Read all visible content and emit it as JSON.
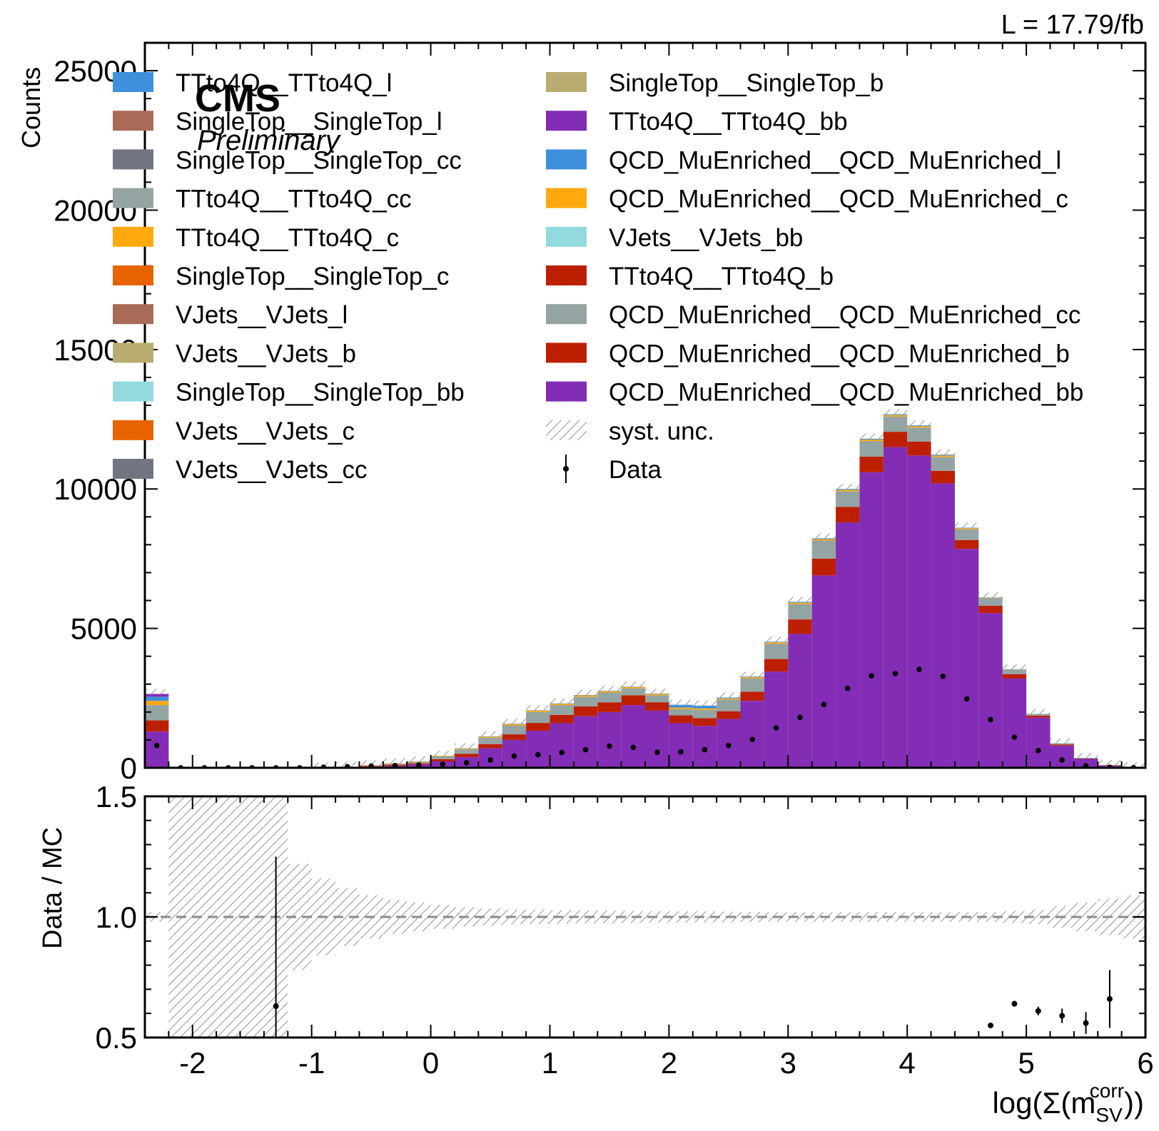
{
  "header": {
    "lumi": "L = 17.79/fb",
    "cms": "CMS",
    "preliminary": "Preliminary"
  },
  "chart_data": {
    "type": "bar",
    "subtype": "stacked-histogram-with-ratio",
    "xlabel": "log(Σ(m_SV^corr))",
    "xlabel_main": "log(Σ(m",
    "xlabel_sub": "SV",
    "xlabel_sup": "corr",
    "xlabel_end": "))",
    "ylabel": "Counts",
    "ratio_ylabel": "Data / MC",
    "xlim": [
      -2.4,
      6.0
    ],
    "ylim": [
      0,
      26000
    ],
    "ratio_ylim": [
      0.5,
      1.5
    ],
    "bin_width": 0.2,
    "x_ticks": [
      "-2",
      "-1",
      "0",
      "1",
      "2",
      "3",
      "4",
      "5",
      "6"
    ],
    "y_ticks": [
      "0",
      "5000",
      "10000",
      "15000",
      "20000",
      "25000"
    ],
    "ratio_y_ticks": [
      "0.5",
      "1.0",
      "1.5"
    ],
    "legend_placement": "top (two columns)",
    "colors": {
      "TTto4Q__TTto4Q_l": "#3f90da",
      "SingleTop__SingleTop_l": "#a96b59",
      "SingleTop__SingleTop_cc": "#717581",
      "TTto4Q__TTto4Q_cc": "#94a4a2",
      "TTto4Q__TTto4Q_c": "#ffa90e",
      "SingleTop__SingleTop_c": "#e76300",
      "VJets__VJets_l": "#a96b59",
      "VJets__VJets_b": "#b9ac70",
      "SingleTop__SingleTop_bb": "#92dadd",
      "VJets__VJets_c": "#e76300",
      "VJets__VJets_cc": "#717581",
      "SingleTop__SingleTop_b": "#b9ac70",
      "TTto4Q__TTto4Q_bb": "#832db6",
      "QCD_MuEnriched__QCD_MuEnriched_l": "#3f90da",
      "QCD_MuEnriched__QCD_MuEnriched_c": "#ffa90e",
      "VJets__VJets_bb": "#92dadd",
      "TTto4Q__TTto4Q_b": "#bd1f01",
      "QCD_MuEnriched__QCD_MuEnriched_cc": "#94a4a2",
      "QCD_MuEnriched__QCD_MuEnriched_b": "#bd1f01",
      "QCD_MuEnriched__QCD_MuEnriched_bb": "#832db6"
    },
    "legend": {
      "col1": [
        "TTto4Q__TTto4Q_l",
        "SingleTop__SingleTop_l",
        "SingleTop__SingleTop_cc",
        "TTto4Q__TTto4Q_cc",
        "TTto4Q__TTto4Q_c",
        "SingleTop__SingleTop_c",
        "VJets__VJets_l",
        "VJets__VJets_b",
        "SingleTop__SingleTop_bb",
        "VJets__VJets_c",
        "VJets__VJets_cc"
      ],
      "col2": [
        "SingleTop__SingleTop_b",
        "TTto4Q__TTto4Q_bb",
        "QCD_MuEnriched__QCD_MuEnriched_l",
        "QCD_MuEnriched__QCD_MuEnriched_c",
        "VJets__VJets_bb",
        "TTto4Q__TTto4Q_b",
        "QCD_MuEnriched__QCD_MuEnriched_cc",
        "QCD_MuEnriched__QCD_MuEnriched_b",
        "QCD_MuEnriched__QCD_MuEnriched_bb"
      ],
      "syst": "syst. unc.",
      "data": "Data"
    },
    "bins_x_low": [
      -2.4,
      -2.2,
      -2.0,
      -1.8,
      -1.6,
      -1.4,
      -1.2,
      -1.0,
      -0.8,
      -0.6,
      -0.4,
      -0.2,
      0.0,
      0.2,
      0.4,
      0.6,
      0.8,
      1.0,
      1.2,
      1.4,
      1.6,
      1.8,
      2.0,
      2.2,
      2.4,
      2.6,
      2.8,
      3.0,
      3.2,
      3.4,
      3.6,
      3.8,
      4.0,
      4.2,
      4.4,
      4.6,
      4.8,
      5.0,
      5.2,
      5.4,
      5.6,
      5.8
    ],
    "stack_bottom_to_top": [
      "QCD_MuEnriched__QCD_MuEnriched_bb",
      "QCD_MuEnriched__QCD_MuEnriched_b",
      "QCD_MuEnriched__QCD_MuEnriched_cc",
      "QCD_MuEnriched__QCD_MuEnriched_c",
      "QCD_MuEnriched__QCD_MuEnriched_l",
      "TTto4Q__TTto4Q_bb"
    ],
    "series": [
      {
        "name": "QCD_MuEnriched__QCD_MuEnriched_bb",
        "values": [
          1300,
          0,
          0,
          0,
          0,
          0,
          0,
          5,
          20,
          40,
          70,
          120,
          230,
          380,
          700,
          1000,
          1330,
          1600,
          1850,
          2000,
          2250,
          2050,
          1600,
          1500,
          1750,
          2400,
          3450,
          4800,
          6900,
          8800,
          10600,
          11500,
          11200,
          10200,
          7850,
          5550,
          3200,
          1800,
          800,
          320,
          90,
          20
        ]
      },
      {
        "name": "QCD_MuEnriched__QCD_MuEnriched_b",
        "values": [
          400,
          0,
          0,
          0,
          0,
          0,
          0,
          2,
          10,
          25,
          40,
          40,
          80,
          120,
          150,
          200,
          280,
          300,
          350,
          350,
          350,
          300,
          280,
          280,
          280,
          330,
          450,
          520,
          600,
          560,
          560,
          550,
          500,
          450,
          320,
          260,
          160,
          70,
          40,
          15,
          5,
          1
        ]
      },
      {
        "name": "QCD_MuEnriched__QCD_MuEnriched_cc",
        "values": [
          550,
          0,
          0,
          0,
          0,
          0,
          0,
          2,
          8,
          20,
          40,
          60,
          100,
          160,
          230,
          320,
          390,
          350,
          350,
          350,
          250,
          250,
          230,
          300,
          420,
          480,
          550,
          550,
          650,
          560,
          560,
          550,
          500,
          500,
          380,
          270,
          150,
          50,
          30,
          10,
          3,
          1
        ]
      },
      {
        "name": "QCD_MuEnriched__QCD_MuEnriched_c",
        "values": [
          150,
          0,
          0,
          0,
          0,
          0,
          0,
          1,
          2,
          5,
          10,
          10,
          20,
          30,
          40,
          50,
          50,
          50,
          50,
          50,
          50,
          50,
          50,
          50,
          40,
          40,
          50,
          50,
          50,
          50,
          50,
          50,
          50,
          50,
          40,
          20,
          10,
          5,
          5,
          2,
          1,
          0
        ]
      },
      {
        "name": "QCD_MuEnriched__QCD_MuEnriched_l",
        "values": [
          150,
          0,
          0,
          0,
          0,
          0,
          0,
          0,
          0,
          0,
          0,
          0,
          0,
          10,
          10,
          10,
          10,
          10,
          10,
          10,
          10,
          10,
          100,
          100,
          30,
          20,
          20,
          30,
          30,
          30,
          30,
          30,
          30,
          30,
          20,
          10,
          10,
          5,
          3,
          1,
          0,
          0
        ]
      },
      {
        "name": "TTto4Q__TTto4Q_bb",
        "values": [
          100,
          0,
          0,
          0,
          0,
          0,
          0,
          0,
          0,
          0,
          0,
          0,
          0,
          0,
          0,
          0,
          0,
          0,
          0,
          0,
          0,
          0,
          0,
          0,
          0,
          0,
          0,
          0,
          0,
          0,
          0,
          0,
          0,
          0,
          0,
          0,
          0,
          0,
          0,
          0,
          0,
          0
        ]
      }
    ],
    "data_values": [
      800,
      0,
      0,
      0,
      0,
      0,
      0,
      20,
      40,
      60,
      80,
      100,
      130,
      180,
      280,
      420,
      470,
      550,
      650,
      780,
      730,
      560,
      570,
      650,
      800,
      1020,
      1430,
      1810,
      2270,
      2850,
      3300,
      3380,
      3530,
      3280,
      2470,
      1730,
      1100,
      620,
      280,
      70,
      20,
      5
    ],
    "ratio_values": [
      null,
      null,
      null,
      null,
      null,
      0.63,
      null,
      null,
      null,
      null,
      null,
      null,
      null,
      null,
      null,
      null,
      null,
      null,
      null,
      null,
      null,
      null,
      null,
      null,
      null,
      null,
      null,
      null,
      null,
      null,
      null,
      null,
      null,
      null,
      null,
      0.55,
      0.64,
      0.61,
      0.59,
      0.56,
      0.66,
      null
    ],
    "ratio_errors": [
      null,
      null,
      null,
      null,
      null,
      0.62,
      null,
      null,
      null,
      null,
      null,
      null,
      null,
      null,
      null,
      null,
      null,
      null,
      null,
      null,
      null,
      null,
      null,
      null,
      null,
      null,
      null,
      null,
      null,
      null,
      null,
      null,
      null,
      null,
      null,
      0.005,
      0.012,
      0.018,
      0.03,
      0.045,
      0.12,
      null
    ],
    "ratio_unc_halfwidth": [
      0.02,
      0.5,
      0.5,
      0.5,
      0.5,
      0.5,
      0.22,
      0.16,
      0.12,
      0.09,
      0.07,
      0.06,
      0.05,
      0.04,
      0.035,
      0.03,
      0.03,
      0.028,
      0.027,
      0.026,
      0.025,
      0.024,
      0.024,
      0.023,
      0.022,
      0.021,
      0.02,
      0.02,
      0.02,
      0.02,
      0.02,
      0.02,
      0.02,
      0.02,
      0.02,
      0.02,
      0.025,
      0.03,
      0.045,
      0.06,
      0.075,
      0.09
    ]
  }
}
